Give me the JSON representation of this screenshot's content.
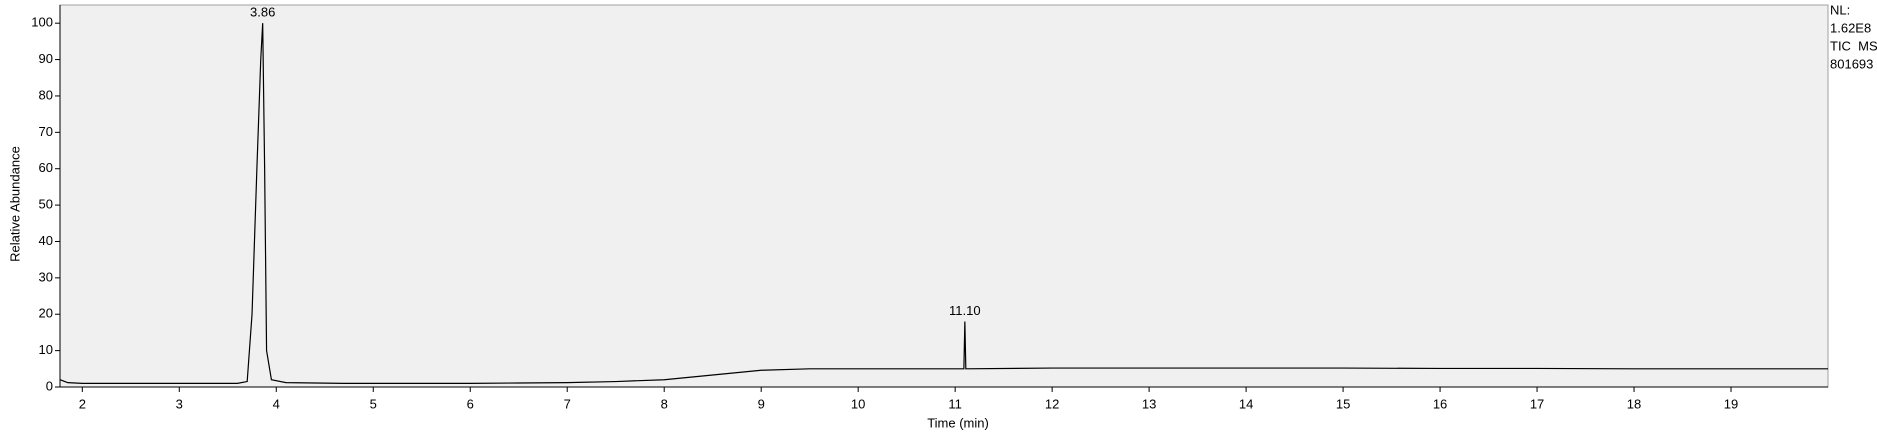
{
  "chart_data": {
    "type": "line",
    "xlabel": "Time (min)",
    "ylabel": "Relative Abundance",
    "xlim": [
      1.77,
      20.0
    ],
    "ylim": [
      0,
      105
    ],
    "xticks": [
      2,
      3,
      4,
      5,
      6,
      7,
      8,
      9,
      10,
      11,
      12,
      13,
      14,
      15,
      16,
      17,
      18,
      19
    ],
    "yticks": [
      0,
      10,
      20,
      30,
      40,
      50,
      60,
      70,
      80,
      90,
      100
    ],
    "series": [
      {
        "color": "#000000",
        "x": [
          1.77,
          1.85,
          2,
          3,
          3.6,
          3.7,
          3.75,
          3.8,
          3.84,
          3.86,
          3.88,
          3.9,
          3.95,
          4.1,
          4.7,
          5,
          6,
          6.5,
          7,
          7.5,
          8,
          8.5,
          9,
          9.5,
          10,
          11,
          11.09,
          11.1,
          11.11,
          12,
          13,
          14,
          15,
          16,
          17,
          18,
          19,
          20
        ],
        "values": [
          2,
          1.2,
          1,
          1,
          1,
          1.5,
          20,
          60,
          90,
          100,
          60,
          10,
          2,
          1.2,
          1,
          1,
          1,
          1.1,
          1.2,
          1.5,
          2,
          3.3,
          4.6,
          5,
          5,
          5,
          5,
          18,
          5,
          5.2,
          5.2,
          5.2,
          5.2,
          5.1,
          5.1,
          5,
          5,
          5
        ]
      }
    ],
    "annotations": [
      {
        "text": "3.86",
        "x": 3.86,
        "y": 100
      },
      {
        "text": "11.10",
        "x": 11.1,
        "y": 18
      }
    ],
    "info": [
      "NL:",
      "1.62E8",
      "TIC  MS",
      "801693"
    ]
  }
}
